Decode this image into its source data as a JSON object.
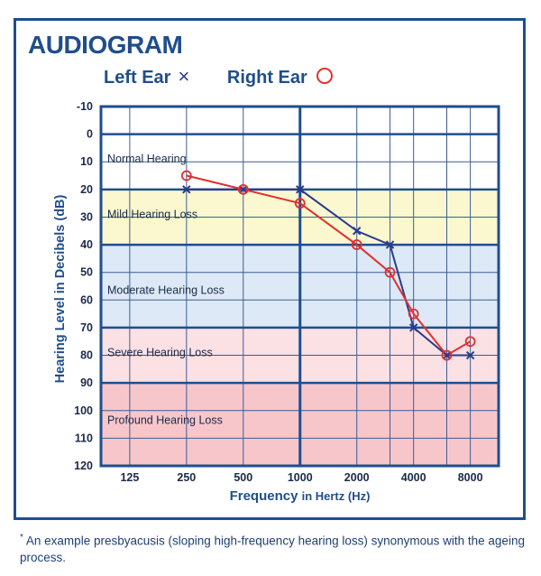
{
  "title": "AUDIOGRAM",
  "legend": {
    "left_label": "Left Ear",
    "left_symbol": "×",
    "right_label": "Right Ear"
  },
  "footnote": {
    "star": "*",
    "text": "An example presbyacusis (sloping high-frequency hearing loss) synonymous with the ageing process."
  },
  "colors": {
    "frame": "#1f4e8c",
    "left_series": "#2b3a8c",
    "right_series": "#e03030",
    "normal_band": "#ffffff",
    "mild_band": "#fbf7cf",
    "moderate_band": "#dde9f6",
    "severe_band": "#fbe0e4",
    "profound_band": "#f7c6cb"
  },
  "chart_data": {
    "type": "line",
    "title": "AUDIOGRAM",
    "xlabel": "Frequency in Hertz (Hz)",
    "xlabel_bold": "Frequency",
    "xlabel_rest": "in Hertz (Hz)",
    "ylabel": "Hearing Level in Decibels (dB)",
    "x_scale": "log2",
    "x_ticks": [
      125,
      250,
      500,
      1000,
      2000,
      4000,
      8000
    ],
    "x_range": [
      88,
      11300
    ],
    "y_ticks": [
      -10,
      0,
      10,
      20,
      30,
      40,
      50,
      60,
      70,
      80,
      90,
      100,
      110,
      120
    ],
    "ylim": [
      -10,
      120
    ],
    "y_inverted": true,
    "grid": true,
    "bands": [
      {
        "label": "Normal Hearing",
        "from": 0,
        "to": 20
      },
      {
        "label": "Mild Hearing Loss",
        "from": 20,
        "to": 40
      },
      {
        "label": "Moderate Hearing Loss",
        "from": 40,
        "to": 70
      },
      {
        "label": "Severe Hearing Loss",
        "from": 70,
        "to": 90
      },
      {
        "label": "Profound Hearing Loss",
        "from": 90,
        "to": 120
      }
    ],
    "series": [
      {
        "name": "Left Ear",
        "marker": "x",
        "x": [
          250,
          500,
          1000,
          2000,
          3000,
          4000,
          6000,
          8000
        ],
        "y": [
          20,
          20,
          20,
          35,
          40,
          70,
          80,
          80
        ]
      },
      {
        "name": "Right Ear",
        "marker": "o",
        "x": [
          250,
          500,
          1000,
          2000,
          3000,
          4000,
          6000,
          8000
        ],
        "y": [
          15,
          20,
          25,
          40,
          50,
          65,
          80,
          75
        ]
      }
    ]
  }
}
